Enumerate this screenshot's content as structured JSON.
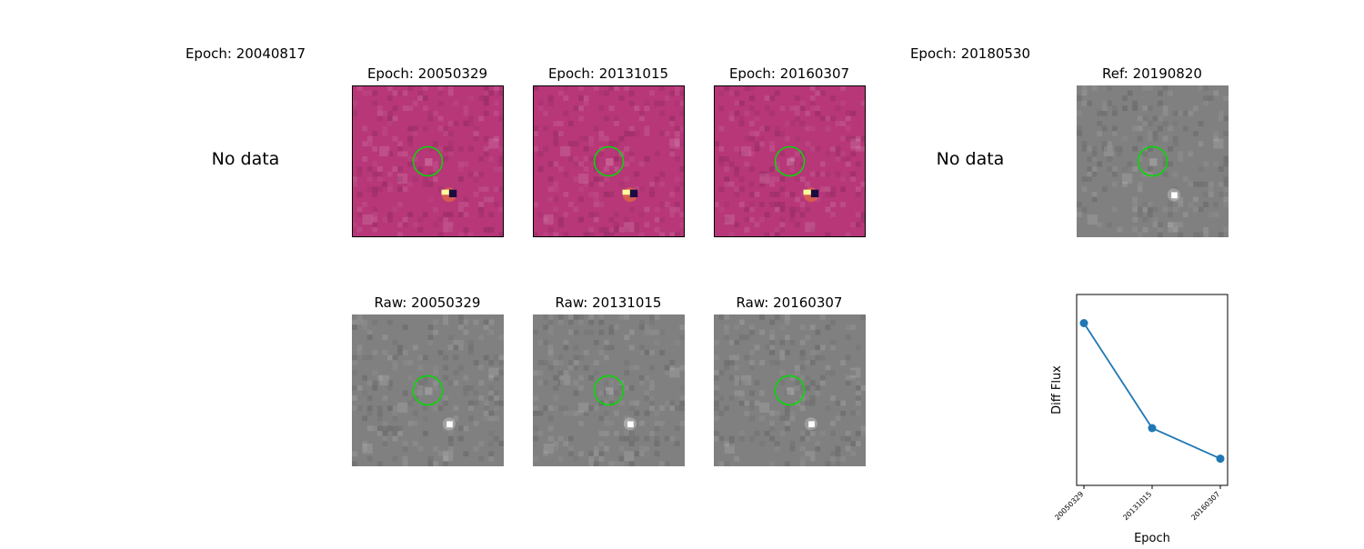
{
  "top_row": [
    {
      "title": "Epoch: 20040817",
      "status": "No data"
    },
    {
      "title": "Epoch: 20050329"
    },
    {
      "title": "Epoch: 20131015"
    },
    {
      "title": "Epoch: 20160307"
    },
    {
      "title": "Epoch: 20180530",
      "status": "No data"
    },
    {
      "title": "Ref: 20190820"
    }
  ],
  "bottom_row": [
    {
      "title": "Raw: 20050329"
    },
    {
      "title": "Raw: 20131015"
    },
    {
      "title": "Raw: 20160307"
    }
  ],
  "colors": {
    "diff_background": "#b73779",
    "raw_background": "#808080",
    "aperture_circle": "#00dd00",
    "line": "#1f77b4"
  },
  "chart_data": {
    "type": "line",
    "x": [
      "20050329",
      "20131015",
      "20160307"
    ],
    "y": [
      0.85,
      0.3,
      0.14
    ],
    "xlabel": "Epoch",
    "ylabel": "Diff Flux",
    "ylim": [
      0,
      1
    ],
    "grid": false
  }
}
